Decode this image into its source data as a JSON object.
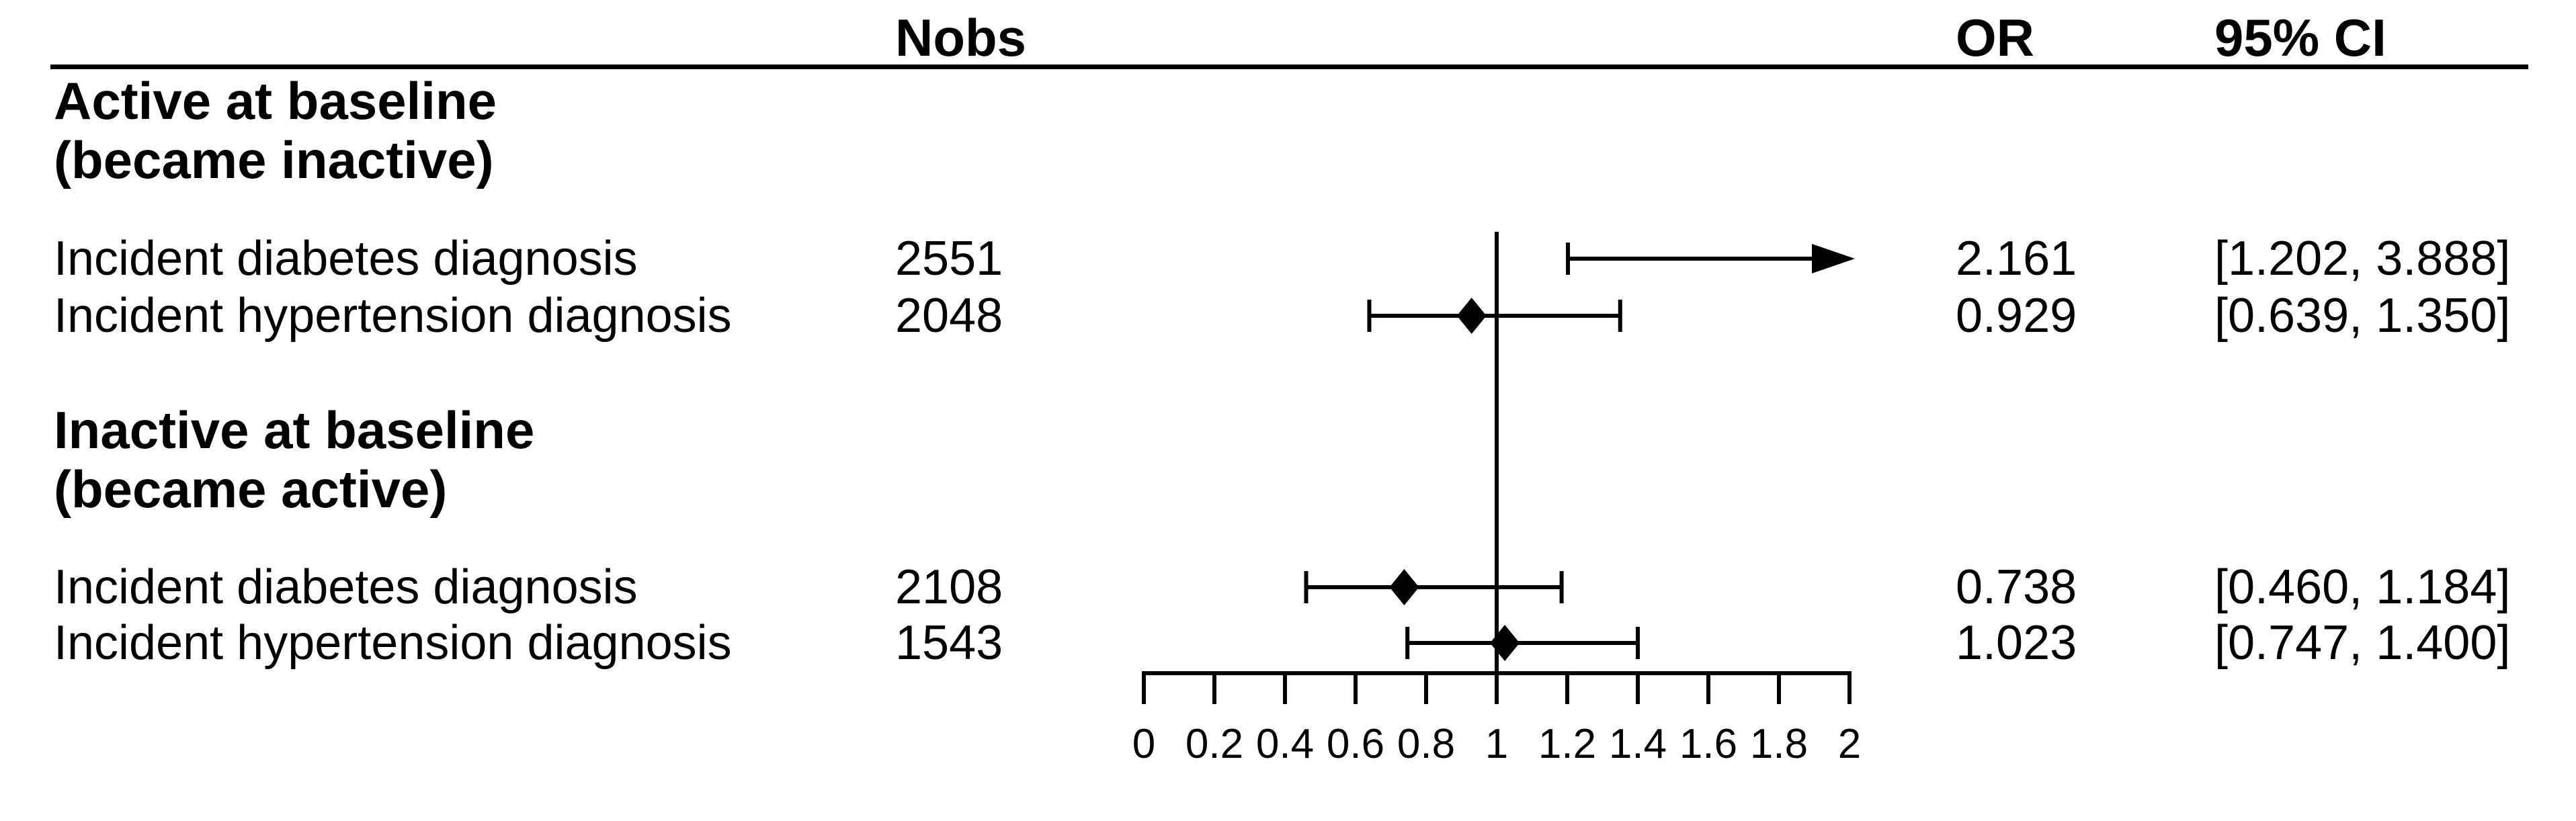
{
  "figure": {
    "background": "#ffffff",
    "text_color": "#000000"
  },
  "table": {
    "columns": {
      "nobs": "Nobs",
      "or": "OR",
      "ci": "95% CI"
    },
    "groups": [
      {
        "heading_line1": "Active at baseline",
        "heading_line2": "(became inactive)",
        "rows": [
          {
            "label": "Incident diabetes diagnosis",
            "nobs": "2551",
            "or": "2.161",
            "ci": "[1.202, 3.888]"
          },
          {
            "label": "Incident hypertension diagnosis",
            "nobs": "2048",
            "or": "0.929",
            "ci": "[0.639, 1.350]"
          }
        ]
      },
      {
        "heading_line1": "Inactive at baseline",
        "heading_line2": "(became active)",
        "rows": [
          {
            "label": "Incident diabetes diagnosis",
            "nobs": "2108",
            "or": "0.738",
            "ci": "[0.460, 1.184]"
          },
          {
            "label": "Incident hypertension diagnosis",
            "nobs": "1543",
            "or": "1.023",
            "ci": "[0.747, 1.400]"
          }
        ]
      }
    ]
  },
  "chart_data": {
    "type": "forest",
    "title": "",
    "xlabel": "",
    "axis": {
      "xmin": 0,
      "xmax": 2,
      "ticks": [
        0,
        0.2,
        0.4,
        0.6,
        0.8,
        1,
        1.2,
        1.4,
        1.6,
        1.8,
        2
      ],
      "tick_labels": [
        "0",
        "0.2",
        "0.4",
        "0.6",
        "0.8",
        "1",
        "1.2",
        "1.4",
        "1.6",
        "1.8",
        "2"
      ],
      "reference_line": 1
    },
    "points": [
      {
        "group": "Active at baseline (became inactive)",
        "label": "Incident diabetes diagnosis",
        "nobs": 2551,
        "or": 2.161,
        "ci_low": 1.202,
        "ci_high": 3.888
      },
      {
        "group": "Active at baseline (became inactive)",
        "label": "Incident hypertension diagnosis",
        "nobs": 2048,
        "or": 0.929,
        "ci_low": 0.639,
        "ci_high": 1.35
      },
      {
        "group": "Inactive at baseline (became active)",
        "label": "Incident diabetes diagnosis",
        "nobs": 2108,
        "or": 0.738,
        "ci_low": 0.46,
        "ci_high": 1.184
      },
      {
        "group": "Inactive at baseline (became active)",
        "label": "Incident hypertension diagnosis",
        "nobs": 1543,
        "or": 1.023,
        "ci_low": 0.747,
        "ci_high": 1.4
      }
    ]
  }
}
